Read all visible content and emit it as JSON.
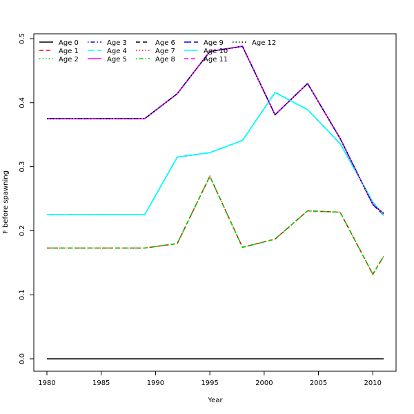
{
  "chart_data": {
    "type": "line",
    "xlabel": "Year",
    "ylabel": "F before spawning",
    "xlim": [
      1980,
      2011
    ],
    "ylim": [
      0,
      0.5
    ],
    "x_ticks": [
      1980,
      1985,
      1990,
      1995,
      2000,
      2005,
      2010
    ],
    "y_ticks": [
      0.0,
      0.1,
      0.2,
      0.3,
      0.4,
      0.5
    ],
    "y_tick_labels": [
      "0.0",
      "0.1",
      "0.2",
      "0.3",
      "0.4",
      "0.5"
    ],
    "grid": false,
    "legend_position": "top-left",
    "series": [
      {
        "name": "Age 0",
        "color": "#000000",
        "dash": "solid",
        "x": [
          1980,
          2011
        ],
        "y": [
          0.0,
          0.0
        ]
      },
      {
        "name": "Age 1",
        "color": "#ff0000",
        "dash": "dashed",
        "x": [
          1980,
          1989,
          1992,
          1995,
          1998,
          2001,
          2004,
          2007,
          2010,
          2011
        ],
        "y": [
          0.173,
          0.173,
          0.18,
          0.285,
          0.174,
          0.187,
          0.231,
          0.229,
          0.132,
          0.16
        ]
      },
      {
        "name": "Age 2",
        "color": "#00cd00",
        "dash": "dotted",
        "x": [
          1980,
          1989,
          1992,
          1995,
          1998,
          2001,
          2004,
          2007,
          2010,
          2011
        ],
        "y": [
          0.173,
          0.173,
          0.18,
          0.285,
          0.174,
          0.187,
          0.231,
          0.229,
          0.132,
          0.16
        ]
      },
      {
        "name": "Age 3",
        "color": "#0000ff",
        "dash": "dotdash",
        "x": [
          1980,
          1989,
          1992,
          1995,
          1998,
          2001,
          2004,
          2007,
          2010,
          2011
        ],
        "y": [
          0.225,
          0.225,
          0.315,
          0.322,
          0.341,
          0.416,
          0.389,
          0.336,
          0.245,
          0.224
        ]
      },
      {
        "name": "Age 4",
        "color": "#00ffff",
        "dash": "longdash",
        "x": [
          1980,
          1989,
          1992,
          1995,
          1998,
          2001,
          2004,
          2007,
          2010,
          2011
        ],
        "y": [
          0.225,
          0.225,
          0.315,
          0.322,
          0.341,
          0.416,
          0.389,
          0.336,
          0.245,
          0.224
        ]
      },
      {
        "name": "Age 5",
        "color": "#ff00ff",
        "dash": "solid",
        "x": [
          1980,
          1989,
          1992,
          1995,
          1998,
          2001,
          2004,
          2007,
          2010,
          2011
        ],
        "y": [
          0.375,
          0.375,
          0.414,
          0.48,
          0.488,
          0.381,
          0.43,
          0.344,
          0.241,
          0.227
        ]
      },
      {
        "name": "Age 6",
        "color": "#000000",
        "dash": "dashed",
        "x": [
          1980,
          1989,
          1992,
          1995,
          1998,
          2001,
          2004,
          2007,
          2010,
          2011
        ],
        "y": [
          0.375,
          0.375,
          0.414,
          0.48,
          0.488,
          0.381,
          0.43,
          0.344,
          0.241,
          0.227
        ]
      },
      {
        "name": "Age 7",
        "color": "#ff0000",
        "dash": "dotted",
        "x": [
          1980,
          1989,
          1992,
          1995,
          1998,
          2001,
          2004,
          2007,
          2010,
          2011
        ],
        "y": [
          0.375,
          0.375,
          0.414,
          0.48,
          0.488,
          0.381,
          0.43,
          0.344,
          0.241,
          0.227
        ]
      },
      {
        "name": "Age 8",
        "color": "#00cd00",
        "dash": "dotdash",
        "x": [
          1980,
          1989,
          1992,
          1995,
          1998,
          2001,
          2004,
          2007,
          2010,
          2011
        ],
        "y": [
          0.173,
          0.173,
          0.18,
          0.285,
          0.174,
          0.187,
          0.231,
          0.229,
          0.132,
          0.16
        ]
      },
      {
        "name": "Age 9",
        "color": "#0000ff",
        "dash": "longdash",
        "x": [
          1980,
          1989,
          1992,
          1995,
          1998,
          2001,
          2004,
          2007,
          2010,
          2011
        ],
        "y": [
          0.375,
          0.375,
          0.414,
          0.48,
          0.488,
          0.381,
          0.43,
          0.344,
          0.241,
          0.224
        ]
      },
      {
        "name": "Age 10",
        "color": "#00ffff",
        "dash": "solid",
        "x": [
          1980,
          1989,
          1992,
          1995,
          1998,
          2001,
          2004,
          2007,
          2010,
          2011
        ],
        "y": [
          0.225,
          0.225,
          0.315,
          0.322,
          0.341,
          0.416,
          0.389,
          0.336,
          0.245,
          0.224
        ]
      },
      {
        "name": "Age 11",
        "color": "#ff00ff",
        "dash": "dashed",
        "x": [
          1980,
          1989,
          1992,
          1995,
          1998,
          2001,
          2004,
          2007,
          2010,
          2011
        ],
        "y": [
          0.375,
          0.375,
          0.414,
          0.48,
          0.488,
          0.381,
          0.43,
          0.344,
          0.241,
          0.227
        ]
      },
      {
        "name": "Age 12",
        "color": "#000000",
        "dash": "dotted",
        "x": [
          1980,
          1989,
          1992,
          1995,
          1998,
          2001,
          2004,
          2007,
          2010,
          2011
        ],
        "y": [
          0.375,
          0.375,
          0.414,
          0.48,
          0.488,
          0.381,
          0.43,
          0.344,
          0.241,
          0.227
        ]
      }
    ]
  }
}
